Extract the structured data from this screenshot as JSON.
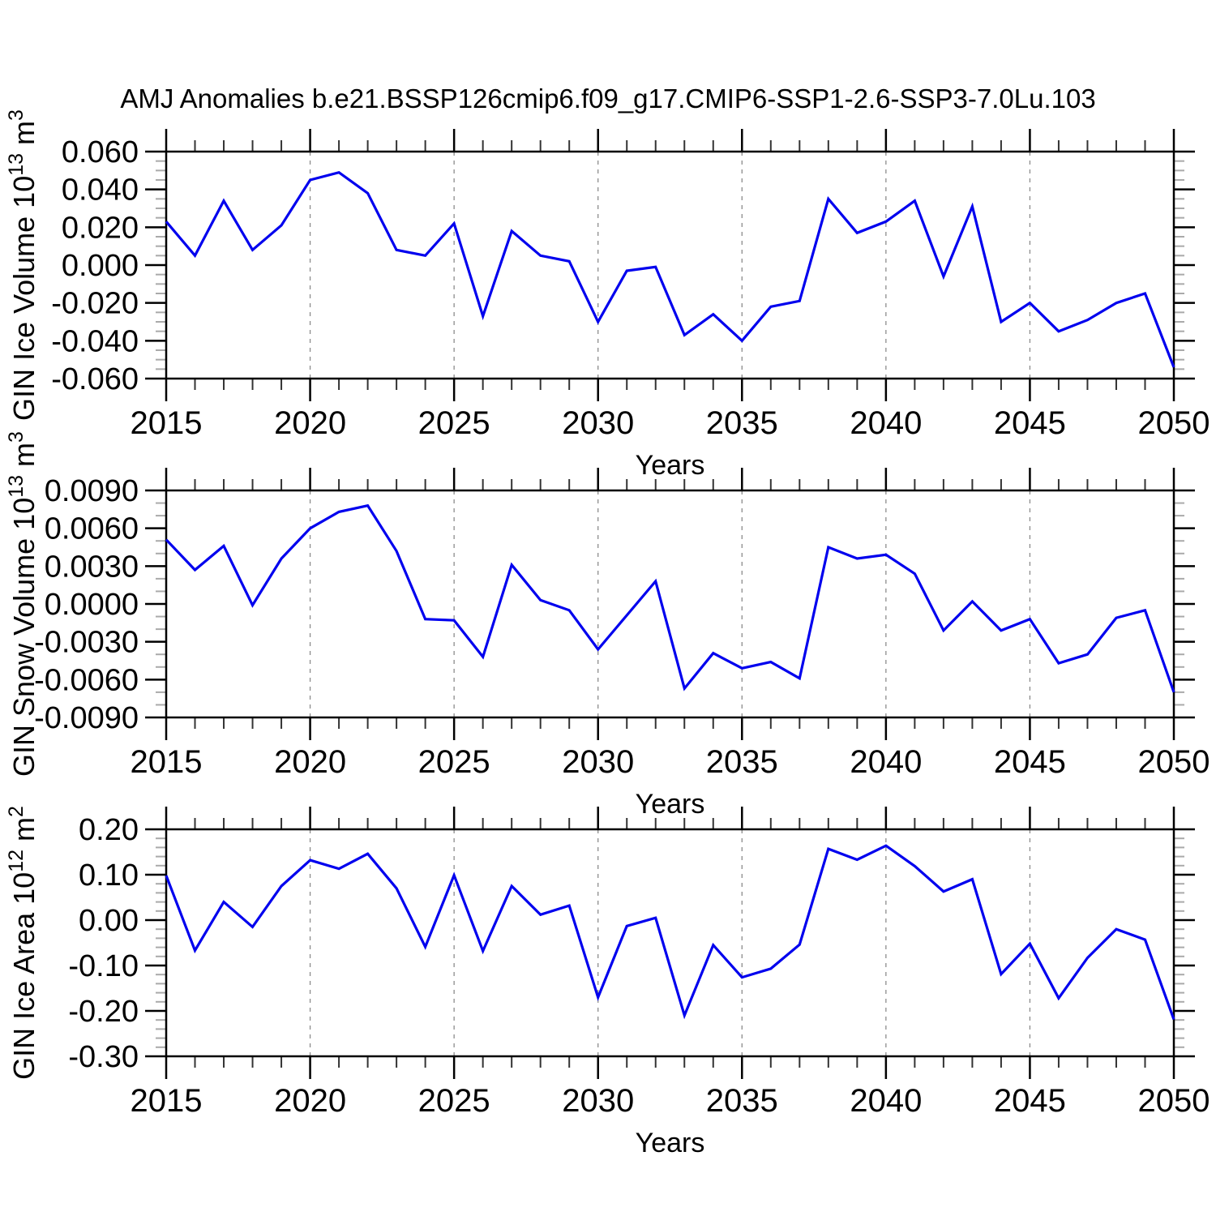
{
  "title": "AMJ Anomalies b.e21.BSSP126cmip6.f09_g17.CMIP6-SSP1-2.6-SSP3-7.0Lu.103",
  "colors": {
    "line": "#0000ee",
    "frame": "#000000",
    "major_tick": "#000000",
    "minor_tick_x": "#333333",
    "minor_tick_y": "#aaaaaa",
    "gridline": "#8c8c8c",
    "text": "#000000"
  },
  "chart_data": [
    {
      "type": "line",
      "xlabel": "Years",
      "ylabel": "GIN Ice Volume 10^13 m^3",
      "legend": "none",
      "grid": "dashed-vertical-at-5yr",
      "xlim": [
        2015,
        2050
      ],
      "x_major_ticks": [
        2015,
        2020,
        2025,
        2030,
        2035,
        2040,
        2045,
        2050
      ],
      "x_minor_step": 1,
      "gridline_years": [
        2020,
        2025,
        2030,
        2035,
        2040,
        2045
      ],
      "ylim": [
        -0.06,
        0.06
      ],
      "yticks": [
        0.06,
        0.04,
        0.02,
        0.0,
        -0.02,
        -0.04,
        -0.06
      ],
      "ytick_labels": [
        "0.060",
        "0.040",
        "0.020",
        "0.000",
        "-0.020",
        "-0.040",
        "-0.060"
      ],
      "y_minor_step": 0.005,
      "x": [
        2015,
        2016,
        2017,
        2018,
        2019,
        2020,
        2021,
        2022,
        2023,
        2024,
        2025,
        2026,
        2027,
        2028,
        2029,
        2030,
        2031,
        2032,
        2033,
        2034,
        2035,
        2036,
        2037,
        2038,
        2039,
        2040,
        2041,
        2042,
        2043,
        2044,
        2045,
        2046,
        2047,
        2048,
        2049,
        2050
      ],
      "values": [
        0.023,
        0.005,
        0.034,
        0.008,
        0.021,
        0.045,
        0.049,
        0.038,
        0.008,
        0.005,
        0.022,
        -0.027,
        0.018,
        0.005,
        0.002,
        -0.03,
        -0.003,
        -0.001,
        -0.037,
        -0.026,
        -0.04,
        -0.022,
        -0.019,
        0.035,
        0.017,
        0.023,
        0.034,
        -0.006,
        0.031,
        -0.03,
        -0.02,
        -0.035,
        -0.029,
        -0.02,
        -0.015,
        -0.054
      ]
    },
    {
      "type": "line",
      "xlabel": "Years",
      "ylabel": "GIN Snow Volume 10^13 m^3",
      "legend": "none",
      "grid": "dashed-vertical-at-5yr",
      "xlim": [
        2015,
        2050
      ],
      "x_major_ticks": [
        2015,
        2020,
        2025,
        2030,
        2035,
        2040,
        2045,
        2050
      ],
      "x_minor_step": 1,
      "gridline_years": [
        2020,
        2025,
        2030,
        2035,
        2040,
        2045
      ],
      "ylim": [
        -0.009,
        0.009
      ],
      "yticks": [
        0.009,
        0.006,
        0.003,
        0.0,
        -0.003,
        -0.006,
        -0.009
      ],
      "ytick_labels": [
        "0.0090",
        "0.0060",
        "0.0030",
        "0.0000",
        "-0.0030",
        "-0.0060",
        "-0.0090"
      ],
      "y_minor_step": 0.001,
      "x": [
        2015,
        2016,
        2017,
        2018,
        2019,
        2020,
        2021,
        2022,
        2023,
        2024,
        2025,
        2026,
        2027,
        2028,
        2029,
        2030,
        2031,
        2032,
        2033,
        2034,
        2035,
        2036,
        2037,
        2038,
        2039,
        2040,
        2041,
        2042,
        2043,
        2044,
        2045,
        2046,
        2047,
        2048,
        2049,
        2050
      ],
      "values": [
        0.0051,
        0.0027,
        0.0046,
        -0.0001,
        0.0036,
        0.006,
        0.0073,
        0.0078,
        0.0042,
        -0.0012,
        -0.0013,
        -0.0042,
        0.0031,
        0.0003,
        -0.0005,
        -0.0036,
        -0.0009,
        0.0018,
        -0.0067,
        -0.0039,
        -0.0051,
        -0.0046,
        -0.0059,
        0.0045,
        0.0036,
        0.0039,
        0.0024,
        -0.0021,
        0.0002,
        -0.0021,
        -0.0012,
        -0.0047,
        -0.004,
        -0.0011,
        -0.0005,
        -0.007
      ]
    },
    {
      "type": "line",
      "xlabel": "Years",
      "ylabel": "GIN Ice Area 10^12 m^2",
      "legend": "none",
      "grid": "dashed-vertical-at-5yr",
      "xlim": [
        2015,
        2050
      ],
      "x_major_ticks": [
        2015,
        2020,
        2025,
        2030,
        2035,
        2040,
        2045,
        2050
      ],
      "x_minor_step": 1,
      "gridline_years": [
        2020,
        2025,
        2030,
        2035,
        2040,
        2045
      ],
      "ylim": [
        -0.3,
        0.2
      ],
      "yticks": [
        0.2,
        0.1,
        0.0,
        -0.1,
        -0.2,
        -0.3
      ],
      "ytick_labels": [
        "0.20",
        "0.10",
        "0.00",
        "-0.10",
        "-0.20",
        "-0.30"
      ],
      "y_minor_step": 0.02,
      "x": [
        2015,
        2016,
        2017,
        2018,
        2019,
        2020,
        2021,
        2022,
        2023,
        2024,
        2025,
        2026,
        2027,
        2028,
        2029,
        2030,
        2031,
        2032,
        2033,
        2034,
        2035,
        2036,
        2037,
        2038,
        2039,
        2040,
        2041,
        2042,
        2043,
        2044,
        2045,
        2046,
        2047,
        2048,
        2049,
        2050
      ],
      "values": [
        0.098,
        -0.067,
        0.04,
        -0.015,
        0.075,
        0.132,
        0.113,
        0.146,
        0.07,
        -0.059,
        0.099,
        -0.068,
        0.075,
        0.012,
        0.032,
        -0.17,
        -0.013,
        0.005,
        -0.21,
        -0.055,
        -0.126,
        -0.107,
        -0.054,
        0.157,
        0.133,
        0.164,
        0.119,
        0.063,
        0.09,
        -0.119,
        -0.052,
        -0.172,
        -0.083,
        -0.02,
        -0.043,
        -0.219
      ]
    }
  ]
}
